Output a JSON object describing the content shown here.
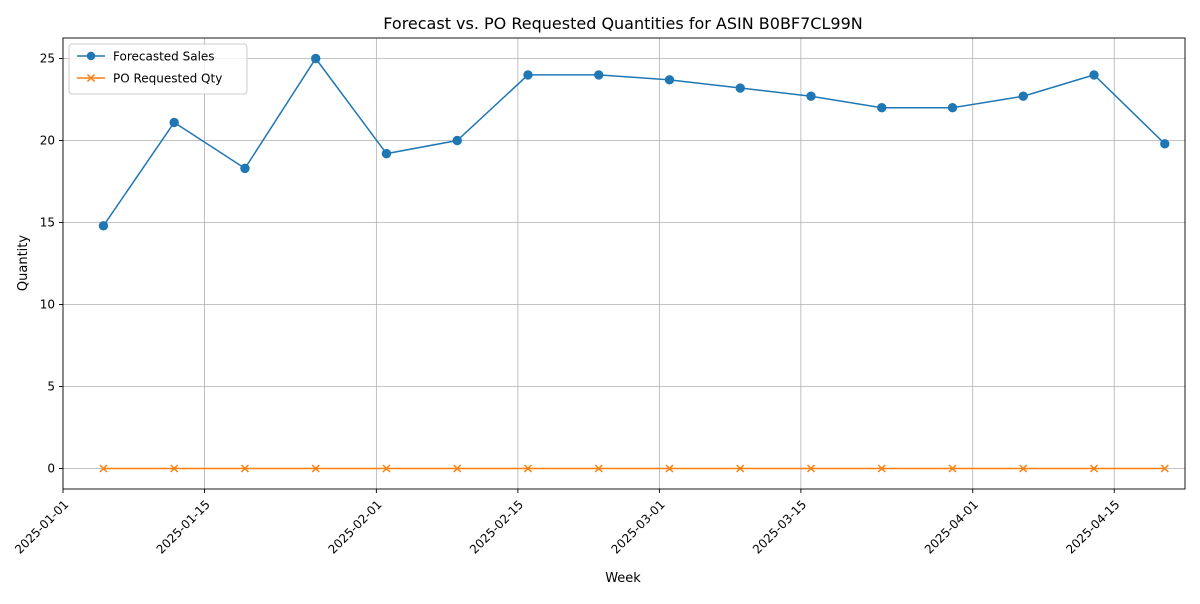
{
  "chart_data": {
    "type": "line",
    "title": "Forecast vs. PO Requested Quantities for ASIN B0BF7CL99N",
    "xlabel": "Week",
    "ylabel": "Quantity",
    "x_type": "date",
    "x": [
      "2025-01-05",
      "2025-01-12",
      "2025-01-19",
      "2025-01-26",
      "2025-02-02",
      "2025-02-09",
      "2025-02-16",
      "2025-02-23",
      "2025-03-02",
      "2025-03-09",
      "2025-03-16",
      "2025-03-23",
      "2025-03-30",
      "2025-04-06",
      "2025-04-13",
      "2025-04-20"
    ],
    "xlim": [
      "2025-01-01",
      "2025-04-22"
    ],
    "x_ticks": [
      "2025-01-01",
      "2025-01-15",
      "2025-02-01",
      "2025-02-15",
      "2025-03-01",
      "2025-03-15",
      "2025-04-01",
      "2025-04-15"
    ],
    "ylim": [
      -1.25,
      26.25
    ],
    "y_ticks": [
      0,
      5,
      10,
      15,
      20,
      25
    ],
    "grid": true,
    "legend_position": "upper left",
    "series": [
      {
        "name": "Forecasted Sales",
        "color": "#1f77b4",
        "marker": "circle",
        "values": [
          14.8,
          21.1,
          18.3,
          25.0,
          19.2,
          20.0,
          24.0,
          24.0,
          23.7,
          23.2,
          22.7,
          22.0,
          22.0,
          22.7,
          24.0,
          19.8
        ]
      },
      {
        "name": "PO Requested Qty",
        "color": "#ff7f0e",
        "marker": "x",
        "values": [
          0,
          0,
          0,
          0,
          0,
          0,
          0,
          0,
          0,
          0,
          0,
          0,
          0,
          0,
          0,
          0
        ]
      }
    ]
  }
}
